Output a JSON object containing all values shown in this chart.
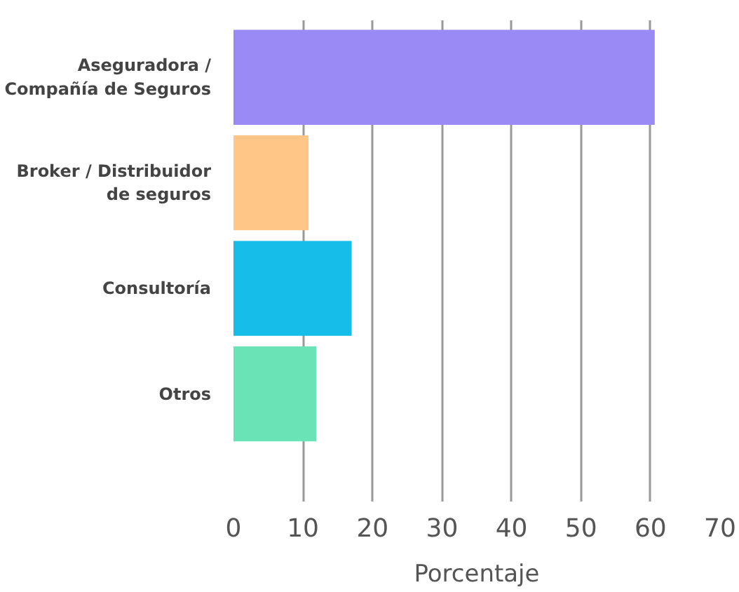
{
  "chart_data": {
    "type": "bar",
    "orientation": "horizontal",
    "xlabel": "Porcentaje",
    "categories": [
      "Aseguradora / Compañía de Seguros",
      "Broker / Distribuidor de seguros",
      "Consultoría",
      "Otros"
    ],
    "values": [
      60.6,
      10.8,
      17.0,
      11.9
    ],
    "colors": [
      "#9a8af5",
      "#ffc688",
      "#16bde8",
      "#6ae4b7"
    ],
    "xlim": [
      0,
      70
    ],
    "xticks": [
      0,
      10,
      20,
      30,
      40,
      50,
      60,
      70
    ],
    "grid": "x"
  }
}
